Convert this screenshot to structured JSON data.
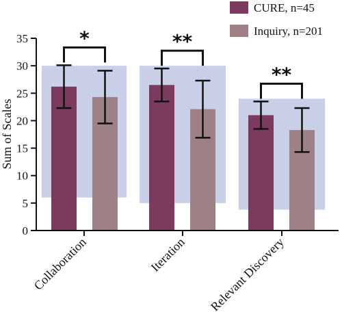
{
  "chart_data": {
    "type": "bar",
    "ylabel": "Sum of Scales",
    "ylim": [
      0,
      35
    ],
    "yticks": [
      0,
      5,
      10,
      15,
      20,
      25,
      30,
      35
    ],
    "categories": [
      "Collaboration",
      "Iteration",
      "Relevant Discovery"
    ],
    "series": [
      {
        "name": "CURE, n=45",
        "color": "#7b3a5e",
        "values": [
          26.2,
          26.5,
          21.0
        ],
        "error": [
          3.9,
          3.0,
          2.5
        ]
      },
      {
        "name": "Inquiry, n=201",
        "color": "#9e8087",
        "values": [
          24.3,
          22.1,
          18.3
        ],
        "error": [
          4.8,
          5.2,
          4.0
        ]
      }
    ],
    "ranges": [
      {
        "low": 6,
        "high": 30
      },
      {
        "low": 5,
        "high": 30
      },
      {
        "low": 3.8,
        "high": 24
      }
    ],
    "range_color": "#c8cfe6",
    "significance": [
      "*",
      "**",
      "**"
    ],
    "legend_position": "top-right",
    "grid": false
  }
}
